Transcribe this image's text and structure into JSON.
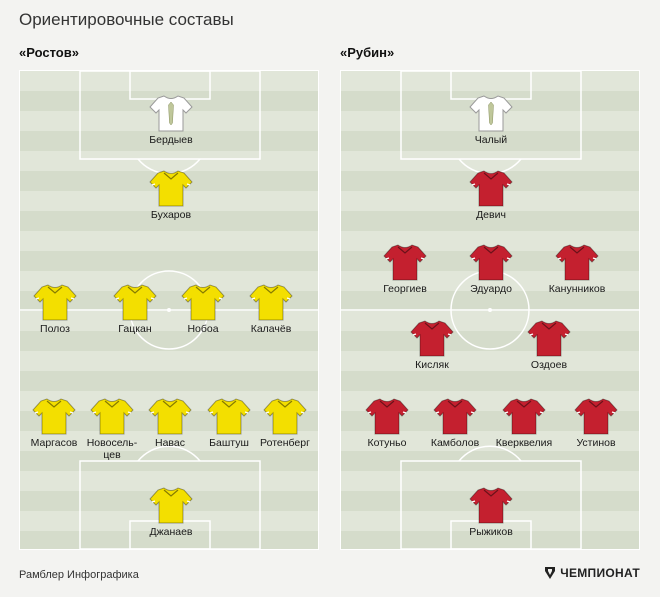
{
  "title": "Ориентировочные составы",
  "teams": [
    {
      "name": "«Ростов»",
      "players": [
        {
          "name": "Бердыев",
          "kit": "gk"
        },
        {
          "name": "Бухаров",
          "kit": "field"
        },
        {
          "name": "Полоз",
          "kit": "field"
        },
        {
          "name": "Гацкан",
          "kit": "field"
        },
        {
          "name": "Нобоа",
          "kit": "field"
        },
        {
          "name": "Калачёв",
          "kit": "field"
        },
        {
          "name": "Маргасов",
          "kit": "field"
        },
        {
          "name": "Новосель-",
          "name2": "цев",
          "kit": "field"
        },
        {
          "name": "Навас",
          "kit": "field"
        },
        {
          "name": "Баштуш",
          "kit": "field"
        },
        {
          "name": "Ротенберг",
          "kit": "field"
        },
        {
          "name": "Джанаев",
          "kit": "field"
        }
      ]
    },
    {
      "name": "«Рубин»",
      "players": [
        {
          "name": "Чалый",
          "kit": "gk"
        },
        {
          "name": "Девич",
          "kit": "field"
        },
        {
          "name": "Георгиев",
          "kit": "field"
        },
        {
          "name": "Эдуардо",
          "kit": "field"
        },
        {
          "name": "Канунников",
          "kit": "field"
        },
        {
          "name": "Кисляк",
          "kit": "field"
        },
        {
          "name": "Оздоев",
          "kit": "field"
        },
        {
          "name": "Котуньо",
          "kit": "field"
        },
        {
          "name": "Камболов",
          "kit": "field"
        },
        {
          "name": "Кверквелия",
          "kit": "field"
        },
        {
          "name": "Устинов",
          "kit": "field"
        },
        {
          "name": "Рыжиков",
          "kit": "field"
        }
      ]
    }
  ],
  "colors": {
    "rostov_kit": "#f3df00",
    "rubin_kit": "#c4202f",
    "gk_kit": "#ffffff",
    "gk_tie": "#bfc79a"
  },
  "footer": {
    "left": "Рамблер Инфографика",
    "right": "ЧЕМПИОНАТ"
  }
}
